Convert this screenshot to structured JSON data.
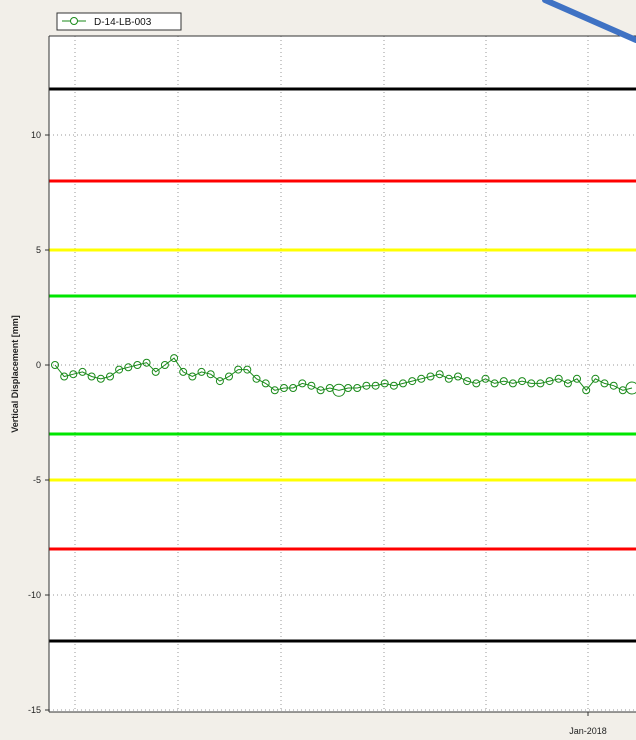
{
  "chart_data": {
    "type": "line",
    "title": "",
    "xlabel": "",
    "ylabel": "Vertical Displacement [mm]",
    "x_ticks": [
      "Jan-2018"
    ],
    "y_ticks": [
      10,
      5,
      0,
      -5,
      -10,
      -15
    ],
    "ylim": [
      -15.5,
      14.5
    ],
    "grid": true,
    "legend_position": "top-left",
    "series": [
      {
        "name": "D-14-LB-003",
        "color": "#1a8a1a",
        "values": [
          0,
          -0.5,
          -0.4,
          -0.3,
          -0.5,
          -0.6,
          -0.5,
          -0.2,
          -0.1,
          0,
          0.1,
          -0.3,
          0,
          0.3,
          -0.3,
          -0.5,
          -0.3,
          -0.4,
          -0.7,
          -0.5,
          -0.2,
          -0.2,
          -0.6,
          -0.8,
          -1.1,
          -1.0,
          -1.0,
          -0.8,
          -0.9,
          -1.1,
          -1.0,
          -1.1,
          -1.0,
          -1.0,
          -0.9,
          -0.9,
          -0.8,
          -0.9,
          -0.8,
          -0.7,
          -0.6,
          -0.5,
          -0.4,
          -0.6,
          -0.5,
          -0.7,
          -0.8,
          -0.6,
          -0.8,
          -0.7,
          -0.8,
          -0.7,
          -0.8,
          -0.8,
          -0.7,
          -0.6,
          -0.8,
          -0.6,
          -1.1,
          -0.6,
          -0.8,
          -0.9,
          -1.1,
          -1.0
        ]
      }
    ],
    "thresholds": [
      {
        "value": 12,
        "color": "#000000"
      },
      {
        "value": 8,
        "color": "#ff0000"
      },
      {
        "value": 5,
        "color": "#ffff00"
      },
      {
        "value": 3,
        "color": "#00e600"
      },
      {
        "value": -3,
        "color": "#00e600"
      },
      {
        "value": -5,
        "color": "#ffff00"
      },
      {
        "value": -8,
        "color": "#ff0000"
      },
      {
        "value": -12,
        "color": "#000000"
      }
    ]
  }
}
